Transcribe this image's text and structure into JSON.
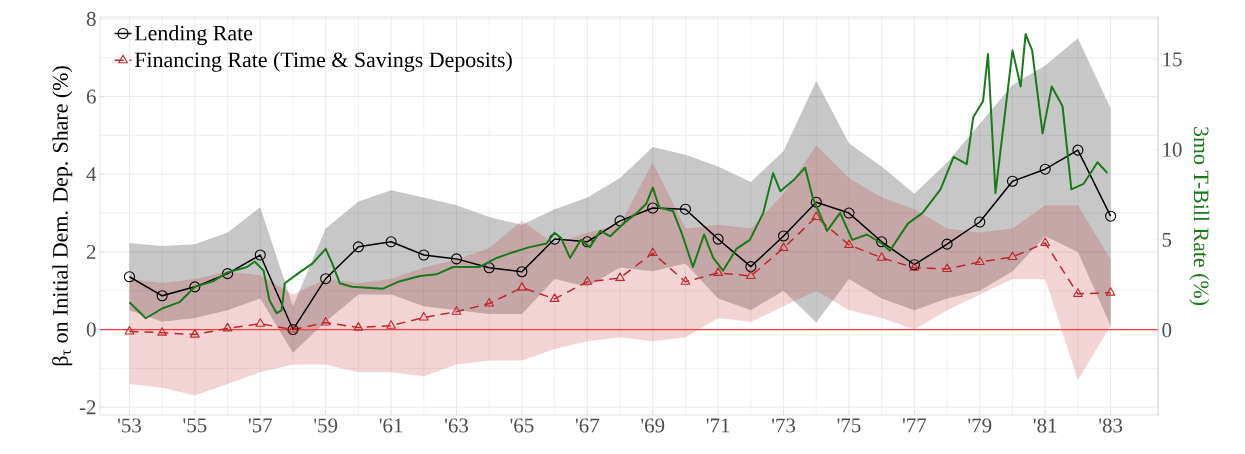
{
  "chart_data": {
    "type": "line",
    "ylabel": "β$_{τ}$ on Initial Dem. Dep. Share (%)",
    "y2label": "3mo T-Bill Rate (%)",
    "x": [
      1953,
      1954,
      1955,
      1956,
      1957,
      1958,
      1959,
      1960,
      1961,
      1962,
      1963,
      1964,
      1965,
      1966,
      1967,
      1968,
      1969,
      1970,
      1971,
      1972,
      1973,
      1974,
      1975,
      1976,
      1977,
      1978,
      1979,
      1980,
      1981,
      1982,
      1983
    ],
    "series": [
      {
        "name": "Lending Rate",
        "color": "#000000",
        "marker": "circle",
        "line_style": "solid",
        "values": [
          1.36,
          0.87,
          1.1,
          1.44,
          1.92,
          0.0,
          1.31,
          2.13,
          2.26,
          1.92,
          1.82,
          1.59,
          1.49,
          2.33,
          2.26,
          2.8,
          3.13,
          3.1,
          2.33,
          1.62,
          2.41,
          3.28,
          3.0,
          2.26,
          1.67,
          2.2,
          2.77,
          3.82,
          4.13,
          4.62,
          2.92
        ],
        "upper": [
          2.23,
          2.15,
          2.2,
          2.5,
          3.15,
          0.6,
          2.6,
          3.3,
          3.59,
          3.4,
          3.2,
          2.9,
          2.7,
          3.1,
          3.4,
          3.9,
          4.7,
          4.5,
          4.2,
          3.8,
          4.6,
          6.4,
          4.8,
          4.2,
          3.5,
          4.3,
          5.3,
          6.3,
          6.8,
          7.5,
          5.7
        ],
        "lower": [
          0.5,
          0.2,
          0.3,
          0.5,
          0.8,
          -0.6,
          0.2,
          0.9,
          0.9,
          0.6,
          0.5,
          0.4,
          0.4,
          1.3,
          1.1,
          1.6,
          1.5,
          1.7,
          0.8,
          0.5,
          1.0,
          0.18,
          1.3,
          0.8,
          0.5,
          0.8,
          1.0,
          1.5,
          2.4,
          2.0,
          0.1
        ]
      },
      {
        "name": "Financing Rate (Time & Savings Deposits)",
        "color": "#c0272d",
        "marker": "triangle",
        "line_style": "dashed",
        "values": [
          -0.05,
          -0.08,
          -0.13,
          0.03,
          0.15,
          0.0,
          0.18,
          0.05,
          0.1,
          0.31,
          0.46,
          0.67,
          1.08,
          0.79,
          1.23,
          1.33,
          1.97,
          1.23,
          1.46,
          1.38,
          2.1,
          2.9,
          2.18,
          1.85,
          1.59,
          1.56,
          1.74,
          1.87,
          2.23,
          0.92,
          0.95
        ],
        "upper": [
          1.3,
          1.2,
          1.3,
          1.5,
          1.4,
          0.9,
          1.3,
          1.2,
          1.3,
          1.6,
          1.8,
          2.1,
          2.8,
          2.2,
          2.5,
          2.7,
          4.3,
          2.6,
          2.7,
          2.6,
          3.5,
          4.74,
          3.9,
          3.4,
          3.1,
          2.6,
          2.5,
          2.6,
          3.2,
          3.2,
          1.8
        ],
        "lower": [
          -1.4,
          -1.5,
          -1.7,
          -1.4,
          -1.1,
          -0.9,
          -0.9,
          -1.1,
          -1.1,
          -1.2,
          -0.9,
          -0.8,
          -0.8,
          -0.5,
          -0.3,
          -0.2,
          -0.3,
          -0.2,
          0.3,
          0.2,
          0.6,
          1.0,
          0.5,
          0.3,
          0.0,
          0.5,
          0.9,
          1.3,
          1.3,
          -1.3,
          0.1
        ]
      },
      {
        "color": "#1a7a1a",
        "marker": "none",
        "line_style": "solid",
        "axis": "y2",
        "x": [
          1953.0,
          1953.5,
          1954.0,
          1954.53,
          1955.0,
          1955.55,
          1956.0,
          1956.6,
          1956.83,
          1957.1,
          1957.28,
          1957.5,
          1957.65,
          1957.75,
          1958.2,
          1958.6,
          1959.0,
          1959.2,
          1959.43,
          1959.8,
          1960.75,
          1961.25,
          1961.88,
          1962.4,
          1962.9,
          1963.71,
          1964.23,
          1964.7,
          1965.24,
          1965.75,
          1966.0,
          1966.2,
          1966.47,
          1966.8,
          1967.08,
          1967.4,
          1967.7,
          1968.1,
          1968.52,
          1968.8,
          1969.0,
          1969.2,
          1969.62,
          1969.9,
          1970.23,
          1970.57,
          1970.85,
          1971.15,
          1971.56,
          1971.97,
          1972.38,
          1972.68,
          1972.9,
          1973.3,
          1973.66,
          1973.9,
          1974.33,
          1974.73,
          1975.1,
          1975.55,
          1976.0,
          1976.25,
          1976.8,
          1977.25,
          1977.8,
          1978.2,
          1978.6,
          1978.8,
          1979.1,
          1979.25,
          1979.48,
          1980.0,
          1980.25,
          1980.4,
          1980.6,
          1980.92,
          1981.2,
          1981.53,
          1981.8,
          1982.17,
          1982.6,
          1982.9
        ],
        "values": [
          1.55,
          0.66,
          1.2,
          1.55,
          2.4,
          2.7,
          3.2,
          3.5,
          3.8,
          3.3,
          1.66,
          0.94,
          1.1,
          2.6,
          3.2,
          3.7,
          4.5,
          3.7,
          2.6,
          2.4,
          2.3,
          2.7,
          3.0,
          3.1,
          3.5,
          3.5,
          4.0,
          4.3,
          4.6,
          4.8,
          5.4,
          5.1,
          4.0,
          5.0,
          4.6,
          5.5,
          5.2,
          5.9,
          6.5,
          7.0,
          7.9,
          6.8,
          6.6,
          5.3,
          3.5,
          5.3,
          4.0,
          3.3,
          4.5,
          5.0,
          6.5,
          8.7,
          7.7,
          8.3,
          9.0,
          7.3,
          5.5,
          6.5,
          5.0,
          5.3,
          4.8,
          4.4,
          5.9,
          6.5,
          7.8,
          9.6,
          9.2,
          11.8,
          12.7,
          15.3,
          7.6,
          15.5,
          13.5,
          16.4,
          15.5,
          10.9,
          13.5,
          12.4,
          7.8,
          8.1,
          9.3,
          8.7
        ]
      }
    ],
    "xlim": [
      1952.1,
      1984.45
    ],
    "xticks": [
      {
        "value": 1953,
        "label": "'53"
      },
      {
        "value": 1955,
        "label": "'55"
      },
      {
        "value": 1957,
        "label": "'57"
      },
      {
        "value": 1959,
        "label": "'59"
      },
      {
        "value": 1961,
        "label": "'61"
      },
      {
        "value": 1963,
        "label": "'63"
      },
      {
        "value": 1965,
        "label": "'65"
      },
      {
        "value": 1967,
        "label": "'67"
      },
      {
        "value": 1969,
        "label": "'69"
      },
      {
        "value": 1971,
        "label": "'71"
      },
      {
        "value": 1973,
        "label": "'73"
      },
      {
        "value": 1975,
        "label": "'75"
      },
      {
        "value": 1977,
        "label": "'77"
      },
      {
        "value": 1979,
        "label": "'79"
      },
      {
        "value": 1981,
        "label": "'81"
      },
      {
        "value": 1983,
        "label": "'83"
      }
    ],
    "ylim": [
      -2.2,
      8.05
    ],
    "yticks": [
      -2,
      0,
      2,
      4,
      6,
      8
    ],
    "y2lim": [
      -4.7,
      17.35
    ],
    "y2ticks": [
      0,
      5,
      10,
      15
    ],
    "ref_lines": [
      {
        "axis": "y",
        "value": 0,
        "color": "#ff3b3b"
      }
    ],
    "grid": true,
    "legend": "top left"
  }
}
